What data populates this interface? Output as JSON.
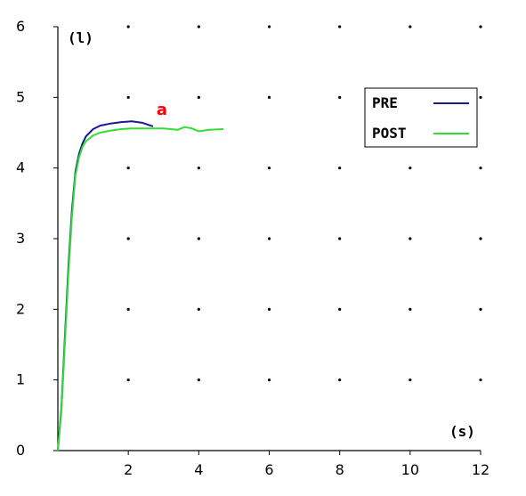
{
  "chart_data": {
    "type": "line",
    "ylabel": "(l)",
    "xlabel": "(s)",
    "xlim": [
      0,
      12
    ],
    "ylim": [
      0,
      6
    ],
    "x_ticks": [
      "2",
      "4",
      "6",
      "8",
      "10",
      "12"
    ],
    "y_ticks": [
      "0",
      "1",
      "2",
      "3",
      "4",
      "5",
      "6"
    ],
    "grid": "dots",
    "legend_position": "top-right",
    "annotation": {
      "text": "a",
      "x": 2.8,
      "y": 4.75,
      "color": "#ff0000"
    },
    "series": [
      {
        "name": "PRE",
        "color": "#1a1a8c",
        "x": [
          0.0,
          0.1,
          0.2,
          0.3,
          0.4,
          0.5,
          0.6,
          0.7,
          0.8,
          1.0,
          1.2,
          1.5,
          1.8,
          2.1,
          2.4,
          2.7
        ],
        "y": [
          0.0,
          0.6,
          1.6,
          2.6,
          3.4,
          3.95,
          4.2,
          4.35,
          4.45,
          4.55,
          4.6,
          4.63,
          4.65,
          4.66,
          4.64,
          4.59
        ]
      },
      {
        "name": "POST",
        "color": "#33dd33",
        "x": [
          0.0,
          0.1,
          0.2,
          0.3,
          0.4,
          0.5,
          0.6,
          0.7,
          0.8,
          1.0,
          1.2,
          1.5,
          1.8,
          2.1,
          2.5,
          3.0,
          3.4,
          3.6,
          3.8,
          4.0,
          4.3,
          4.7
        ],
        "y": [
          0.0,
          0.55,
          1.5,
          2.5,
          3.3,
          3.9,
          4.15,
          4.3,
          4.38,
          4.46,
          4.5,
          4.53,
          4.55,
          4.56,
          4.56,
          4.56,
          4.54,
          4.58,
          4.56,
          4.52,
          4.54,
          4.55
        ]
      }
    ]
  }
}
